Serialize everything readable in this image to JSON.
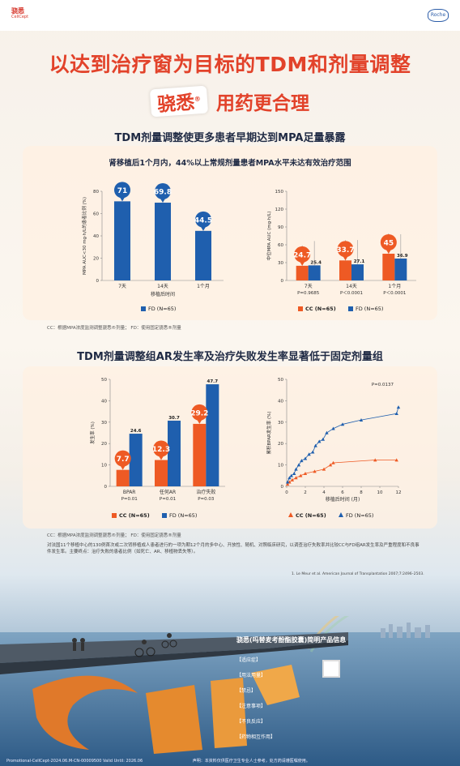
{
  "header": {
    "logo_left_cn": "骁悉",
    "logo_left_en": "CellCept",
    "logo_right": "Roche"
  },
  "headline": "以达到治疗窗为目标的TDM和剂量调整",
  "subline": {
    "brand": "骁悉",
    "brand_mark": "®",
    "text": "用药更合理"
  },
  "section1": {
    "title": "TDM剂量调整使更多患者早期达到MPA足量暴露",
    "panel_title": "肾移植后1个月内，44%以上常规剂量患者MPA水平未达有效治疗范围",
    "footnote": "CC：根据MPA浓度监测调整骁悉®剂量；  FD：使用固定骁悉®剂量"
  },
  "section2": {
    "title": "TDM剂量调整组AR发生率及治疗失败发生率显著低于固定剂量组",
    "footnote": "CC：根据MPA浓度监测调整骁悉®剂量；  FD：使用固定骁悉®剂量",
    "description": "对法国11个移植中心的130例首次或二次肾移植成人患者进行的一项为期12个月的多中心、开放性、随机、对照临床研究，以调查治疗失败率并比较CC与FD组AR发生率及严重程度和不良事件发生率。主要终点：治疗失败的患者比例（如死亡、AR、移植物丢失等）。",
    "reference": "1. Le Meur et al. American Journal of Transplantation 2007;7:2496–2503."
  },
  "info": {
    "title": "骁悉(吗替麦考酚酯胶囊)简明产品信息",
    "lines": [
      "【适应症】",
      "【用法用量】",
      "【禁忌】",
      "【注意事项】",
      "【不良反应】",
      "【药物相互作用】"
    ]
  },
  "bottom": {
    "code": "Promotional-CellCept-2024.06.M-CN-00009500 Valid Until: 2026.06",
    "disclaimer": "声明：本资料仅供医疗卫生专业人士参考，处方药请遵医嘱使用。"
  },
  "colors": {
    "cc": "#ee5a24",
    "fd": "#1f5fae",
    "accent": "#e2422a"
  },
  "chart_data": [
    {
      "type": "bar",
      "title": "",
      "ylabel": "MPA AUC<30 mg·h/L的患者比例 (%)",
      "xlabel": "移植后时间",
      "ylim": [
        0,
        80
      ],
      "yticks": [
        0,
        20,
        40,
        60,
        80
      ],
      "categories": [
        "7天",
        "14天",
        "1个月"
      ],
      "series": [
        {
          "name": "FD (N=65)",
          "values": [
            71,
            69.8,
            44.5
          ]
        }
      ],
      "legend": "bottom"
    },
    {
      "type": "bar",
      "title": "",
      "ylabel": "中位MPA AUC (mg·h/L)",
      "ylim": [
        0,
        150
      ],
      "yticks": [
        0,
        30,
        60,
        90,
        120,
        150
      ],
      "categories": [
        "7天",
        "14天",
        "1个月"
      ],
      "pvalues": [
        "P=0.9685",
        "P＜0.0001",
        "P＜0.0001"
      ],
      "series": [
        {
          "name": "CC (N=65)",
          "values": [
            24.7,
            33.7,
            45
          ]
        },
        {
          "name": "FD (N=65)",
          "values": [
            25.4,
            27.1,
            36.9
          ]
        }
      ],
      "legend": "bottom"
    },
    {
      "type": "bar",
      "title": "",
      "ylabel": "发生率 (%)",
      "ylim": [
        0,
        50
      ],
      "yticks": [
        0,
        10,
        20,
        30,
        40,
        50
      ],
      "categories": [
        "BPAR",
        "任何AR",
        "治疗失败"
      ],
      "pvalues": [
        "P=0.01",
        "P=0.01",
        "P=0.03"
      ],
      "series": [
        {
          "name": "CC (N=65)",
          "values": [
            7.7,
            12.3,
            29.2
          ]
        },
        {
          "name": "FD (N=65)",
          "values": [
            24.6,
            30.7,
            47.7
          ]
        }
      ],
      "legend": "bottom"
    },
    {
      "type": "line",
      "title": "",
      "ylabel": "累积BPAR发生率 (%)",
      "xlabel": "移植后时间 (月)",
      "xlim": [
        0,
        12
      ],
      "ylim": [
        0,
        50
      ],
      "xticks": [
        0,
        2,
        4,
        6,
        8,
        10,
        12
      ],
      "yticks": [
        0,
        10,
        20,
        30,
        40,
        50
      ],
      "annotation": "P=0.0137",
      "series": [
        {
          "name": "CC (N=65)",
          "x": [
            0.1,
            0.3,
            0.6,
            1,
            1.5,
            2,
            3,
            4,
            4.7,
            5,
            9.5,
            11.8
          ],
          "y": [
            1,
            2,
            3,
            4,
            5,
            6,
            7,
            8,
            10,
            11,
            12.3,
            12.3
          ]
        },
        {
          "name": "FD (N=65)",
          "x": [
            0.1,
            0.3,
            0.5,
            0.8,
            1,
            1.3,
            1.6,
            2,
            2.4,
            2.8,
            3.1,
            3.5,
            3.9,
            4.3,
            5,
            6,
            8,
            11.8,
            12
          ],
          "y": [
            2,
            4,
            5,
            6,
            8,
            10,
            12,
            13,
            15,
            16,
            19,
            21,
            22,
            25,
            27,
            29,
            31,
            34,
            37
          ]
        }
      ],
      "legend": "bottom"
    }
  ]
}
